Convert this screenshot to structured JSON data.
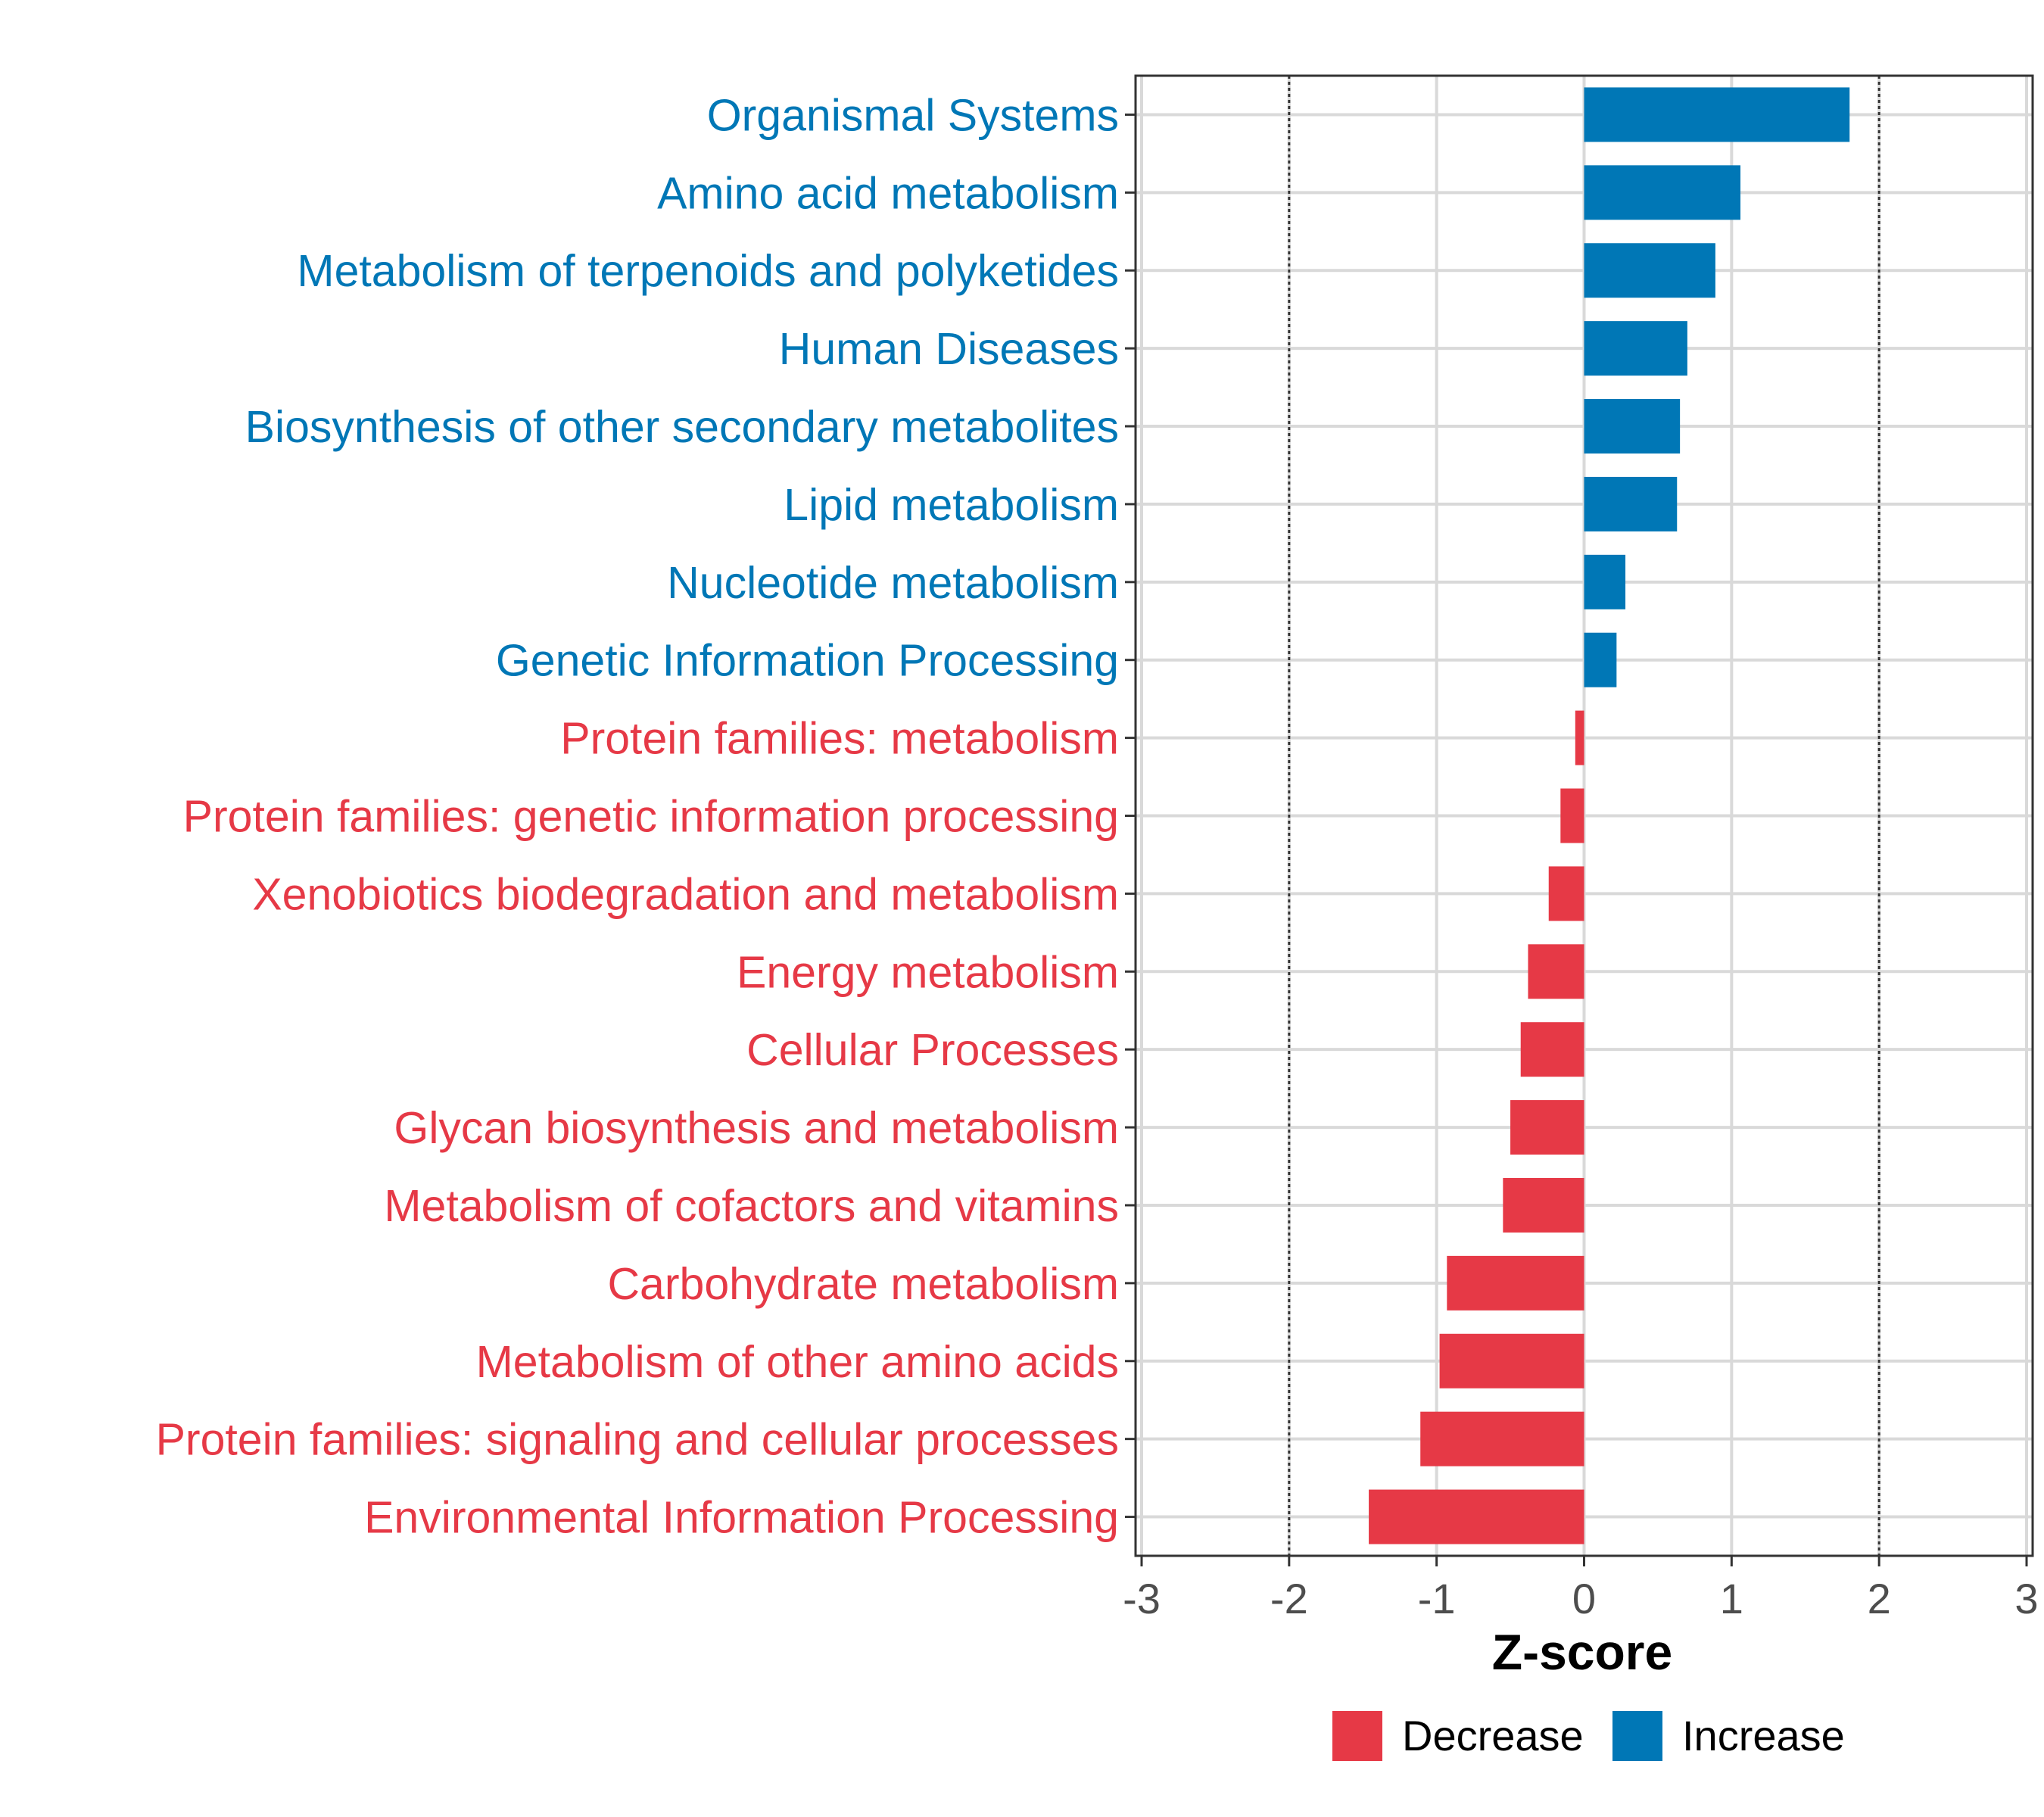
{
  "chart_data": {
    "type": "bar",
    "orientation": "horizontal",
    "title": "",
    "xlabel": "Z-score",
    "ylabel": "",
    "xlim": [
      -3,
      3
    ],
    "xticks": [
      -3,
      -2,
      -1,
      0,
      1,
      2,
      3
    ],
    "tick_labels": [
      "-3",
      "-2",
      "-1",
      "0",
      "1",
      "2",
      "3"
    ],
    "reference_lines": [
      -2,
      2
    ],
    "categories": [
      "Organismal Systems",
      "Amino acid metabolism",
      "Metabolism of terpenoids and polyketides",
      "Human Diseases",
      "Biosynthesis of other secondary metabolites",
      "Lipid metabolism",
      "Nucleotide metabolism",
      "Genetic Information Processing",
      "Protein families: metabolism",
      "Protein families: genetic information processing",
      "Xenobiotics biodegradation and metabolism",
      "Energy metabolism",
      "Cellular Processes",
      "Glycan biosynthesis and metabolism",
      "Metabolism of cofactors and vitamins",
      "Carbohydrate metabolism",
      "Metabolism of other amino acids",
      "Protein families: signaling and cellular processes",
      "Environmental Information Processing"
    ],
    "values": [
      1.8,
      1.06,
      0.89,
      0.7,
      0.65,
      0.63,
      0.28,
      0.22,
      -0.06,
      -0.16,
      -0.24,
      -0.38,
      -0.43,
      -0.5,
      -0.55,
      -0.93,
      -0.98,
      -1.11,
      -1.46
    ],
    "groups": [
      "Increase",
      "Increase",
      "Increase",
      "Increase",
      "Increase",
      "Increase",
      "Increase",
      "Increase",
      "Decrease",
      "Decrease",
      "Decrease",
      "Decrease",
      "Decrease",
      "Decrease",
      "Decrease",
      "Decrease",
      "Decrease",
      "Decrease",
      "Decrease"
    ],
    "legend": [
      {
        "name": "Decrease",
        "color": "#E63946"
      },
      {
        "name": "Increase",
        "color": "#0077B6"
      }
    ],
    "legend_position": "bottom",
    "grid": true
  }
}
